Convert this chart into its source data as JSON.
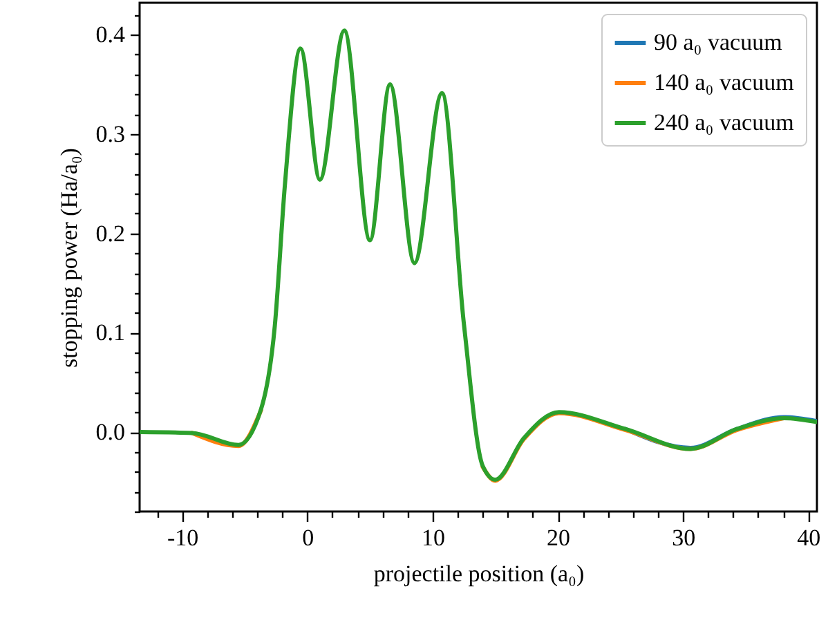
{
  "chart_data": {
    "type": "line",
    "xlabel": "projectile position (a₀)",
    "ylabel": "stopping power (Ha/a₀)",
    "xlim": [
      -13.4,
      40.7
    ],
    "ylim": [
      -0.08,
      0.432
    ],
    "xticks": [
      {
        "value": -12,
        "label": null
      },
      -10,
      {
        "value": -8,
        "label": null
      },
      {
        "value": -6,
        "label": null
      },
      {
        "value": -4,
        "label": null
      },
      {
        "value": -2,
        "label": null
      },
      0,
      {
        "value": 2,
        "label": null
      },
      {
        "value": 4,
        "label": null
      },
      {
        "value": 6,
        "label": null
      },
      {
        "value": 8,
        "label": null
      },
      10,
      {
        "value": 12,
        "label": null
      },
      {
        "value": 14,
        "label": null
      },
      {
        "value": 16,
        "label": null
      },
      {
        "value": 18,
        "label": null
      },
      20,
      {
        "value": 22,
        "label": null
      },
      {
        "value": 24,
        "label": null
      },
      {
        "value": 26,
        "label": null
      },
      {
        "value": 28,
        "label": null
      },
      30,
      {
        "value": 32,
        "label": null
      },
      {
        "value": 34,
        "label": null
      },
      {
        "value": 36,
        "label": null
      },
      {
        "value": 38,
        "label": null
      },
      40
    ],
    "yticks": [
      {
        "value": -0.08,
        "label": null
      },
      {
        "value": -0.06,
        "label": null
      },
      {
        "value": -0.04,
        "label": null
      },
      {
        "value": -0.02,
        "label": null
      },
      {
        "value": 0,
        "label": "0.0"
      },
      {
        "value": 0.02,
        "label": null
      },
      {
        "value": 0.04,
        "label": null
      },
      {
        "value": 0.06,
        "label": null
      },
      {
        "value": 0.08,
        "label": null
      },
      {
        "value": 0.1,
        "label": "0.1"
      },
      {
        "value": 0.12,
        "label": null
      },
      {
        "value": 0.14,
        "label": null
      },
      {
        "value": 0.16,
        "label": null
      },
      {
        "value": 0.18,
        "label": null
      },
      {
        "value": 0.2,
        "label": "0.2"
      },
      {
        "value": 0.22,
        "label": null
      },
      {
        "value": 0.24,
        "label": null
      },
      {
        "value": 0.26,
        "label": null
      },
      {
        "value": 0.28,
        "label": null
      },
      {
        "value": 0.3,
        "label": "0.3"
      },
      {
        "value": 0.32,
        "label": null
      },
      {
        "value": 0.34,
        "label": null
      },
      {
        "value": 0.36,
        "label": null
      },
      {
        "value": 0.38,
        "label": null
      },
      {
        "value": 0.4,
        "label": "0.4"
      },
      {
        "value": 0.42,
        "label": null
      }
    ],
    "grid": false,
    "legend": "top right",
    "marker": "none",
    "line_style": "solid",
    "x": [
      -13.4,
      -9.2,
      -5.5,
      -3.7,
      -2.6,
      -1.8,
      -0.55,
      1.0,
      2.95,
      5.0,
      6.6,
      8.55,
      10.75,
      12.5,
      14.0,
      15.0,
      17.3,
      20.1,
      25.4,
      30.6,
      34.3,
      38.1,
      40.7
    ],
    "series": [
      {
        "name": "90 a₀ vacuum",
        "color": "#1f77b4",
        "values": [
          null,
          null,
          null,
          null,
          null,
          null,
          null,
          null,
          null,
          null,
          null,
          null,
          null,
          null,
          null,
          null,
          null,
          null,
          0.003,
          -0.016,
          0.003,
          0.015,
          0.011
        ]
      },
      {
        "name": "140 a₀ vacuum",
        "color": "#ff7f0e",
        "values": [
          null,
          -0.001,
          -0.014,
          0.022,
          null,
          null,
          null,
          null,
          null,
          null,
          null,
          null,
          null,
          null,
          -0.035,
          -0.049,
          -0.007,
          0.019,
          0.002,
          -0.017,
          0.002,
          0.014,
          null
        ]
      },
      {
        "name": "240 a₀ vacuum",
        "color": "#2ca02c",
        "values": [
          0.0,
          -0.001,
          -0.013,
          0.023,
          0.107,
          0.248,
          0.386,
          0.254,
          0.404,
          0.193,
          0.35,
          0.17,
          0.341,
          0.109,
          -0.034,
          -0.048,
          -0.006,
          0.02,
          0.003,
          -0.017,
          0.003,
          0.014,
          0.01
        ]
      }
    ]
  }
}
